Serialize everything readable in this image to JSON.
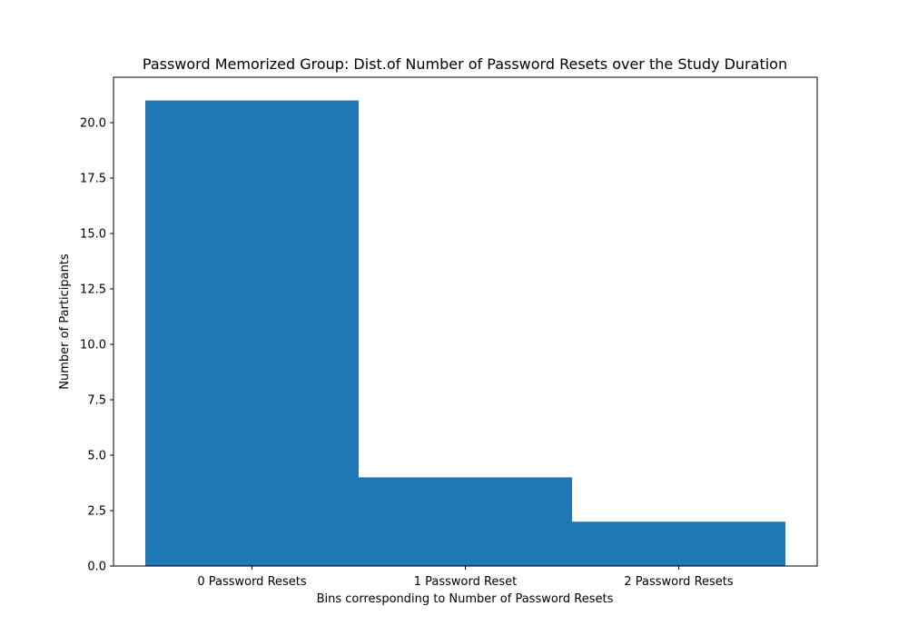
{
  "chart_data": {
    "type": "bar",
    "title": "Password Memorized Group: Dist.of Number of Password Resets over the Study Duration",
    "xlabel": "Bins corresponding to Number of Password Resets",
    "ylabel": "Number of Participants",
    "categories": [
      "0 Password Resets",
      "1 Password Reset",
      "2 Password Resets"
    ],
    "values": [
      21,
      4,
      2
    ],
    "ylim": [
      0,
      22.05
    ],
    "yticks": [
      0.0,
      2.5,
      5.0,
      7.5,
      10.0,
      12.5,
      15.0,
      17.5,
      20.0
    ],
    "ytick_labels": [
      "0.0",
      "2.5",
      "5.0",
      "7.5",
      "10.0",
      "12.5",
      "15.0",
      "17.5",
      "20.0"
    ],
    "bar_color": "#1f77b4",
    "grid": false,
    "legend": null
  }
}
